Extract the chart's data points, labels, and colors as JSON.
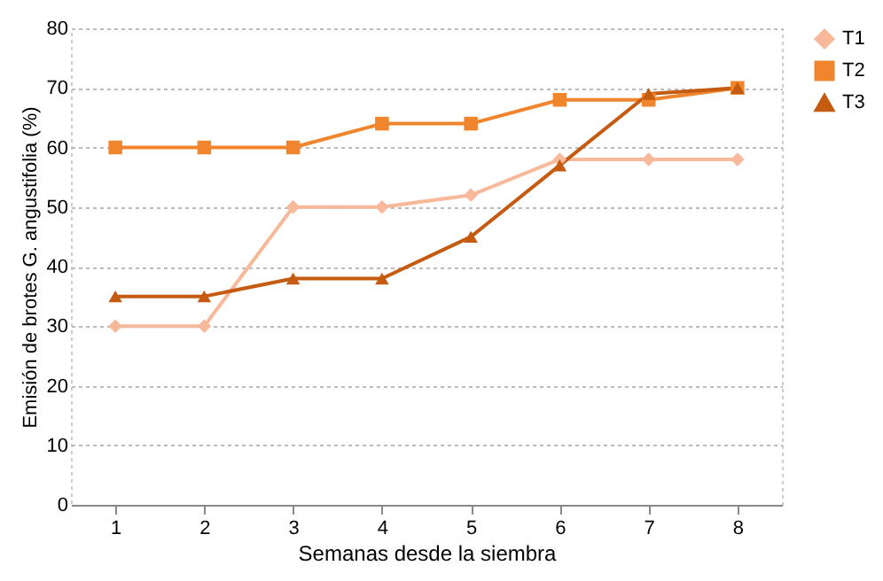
{
  "chart_data": {
    "type": "line",
    "xlabel": "Semanas desde la siembra",
    "ylabel": "Emisión de brotes G. angustifolia (%)",
    "categories": [
      "1",
      "2",
      "3",
      "4",
      "5",
      "6",
      "7",
      "8"
    ],
    "series": [
      {
        "name": "T1",
        "color": "#f8b89a",
        "marker": "diamond",
        "values": [
          30,
          30,
          50,
          50,
          52,
          58,
          58,
          58
        ]
      },
      {
        "name": "T2",
        "color": "#f0852d",
        "marker": "square",
        "values": [
          60,
          60,
          60,
          64,
          64,
          68,
          68,
          70
        ]
      },
      {
        "name": "T3",
        "color": "#c55a11",
        "marker": "triangle",
        "values": [
          35,
          35,
          38,
          38,
          45,
          57,
          69,
          70
        ]
      }
    ],
    "ylim": [
      0,
      80
    ],
    "yticks": [
      0,
      10,
      20,
      30,
      40,
      50,
      60,
      70,
      80
    ],
    "grid": "y",
    "legend": "right",
    "line_style": "solid"
  }
}
